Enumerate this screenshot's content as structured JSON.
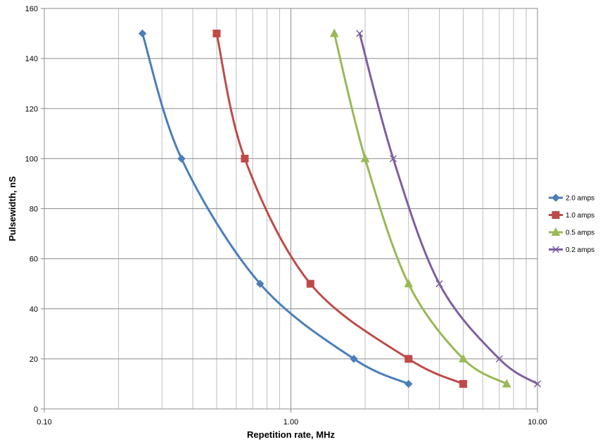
{
  "chart_data": {
    "type": "line",
    "title": "",
    "xlabel": "Repetition rate, MHz",
    "ylabel": "Pulsewidth, nS",
    "xscale": "log",
    "xlim": [
      0.1,
      10
    ],
    "ylim": [
      0,
      160
    ],
    "x_tick_labels": [
      "0.10",
      "1.00",
      "10.00"
    ],
    "y_tick_labels": [
      "0",
      "20",
      "40",
      "60",
      "80",
      "100",
      "120",
      "140",
      "160"
    ],
    "grid": true,
    "legend_position": "right",
    "series": [
      {
        "name": "2.0 amps",
        "color": "#4a7ebb",
        "marker": "diamond",
        "points": [
          [
            0.25,
            150
          ],
          [
            0.36,
            100
          ],
          [
            0.75,
            50
          ],
          [
            1.8,
            20
          ],
          [
            3.0,
            10
          ]
        ]
      },
      {
        "name": "1.0 amps",
        "color": "#be4b48",
        "marker": "square",
        "points": [
          [
            0.5,
            150
          ],
          [
            0.65,
            100
          ],
          [
            1.2,
            50
          ],
          [
            3.0,
            20
          ],
          [
            5.0,
            10
          ]
        ]
      },
      {
        "name": "0.5 amps",
        "color": "#98b954",
        "marker": "triangle",
        "points": [
          [
            1.5,
            150
          ],
          [
            2.0,
            100
          ],
          [
            3.0,
            50
          ],
          [
            5.0,
            20
          ],
          [
            7.5,
            10
          ]
        ]
      },
      {
        "name": "0.2 amps",
        "color": "#7d5fa0",
        "marker": "x",
        "points": [
          [
            1.9,
            150
          ],
          [
            2.6,
            100
          ],
          [
            4.0,
            50
          ],
          [
            7.0,
            20
          ],
          [
            10.0,
            10
          ]
        ]
      }
    ]
  }
}
